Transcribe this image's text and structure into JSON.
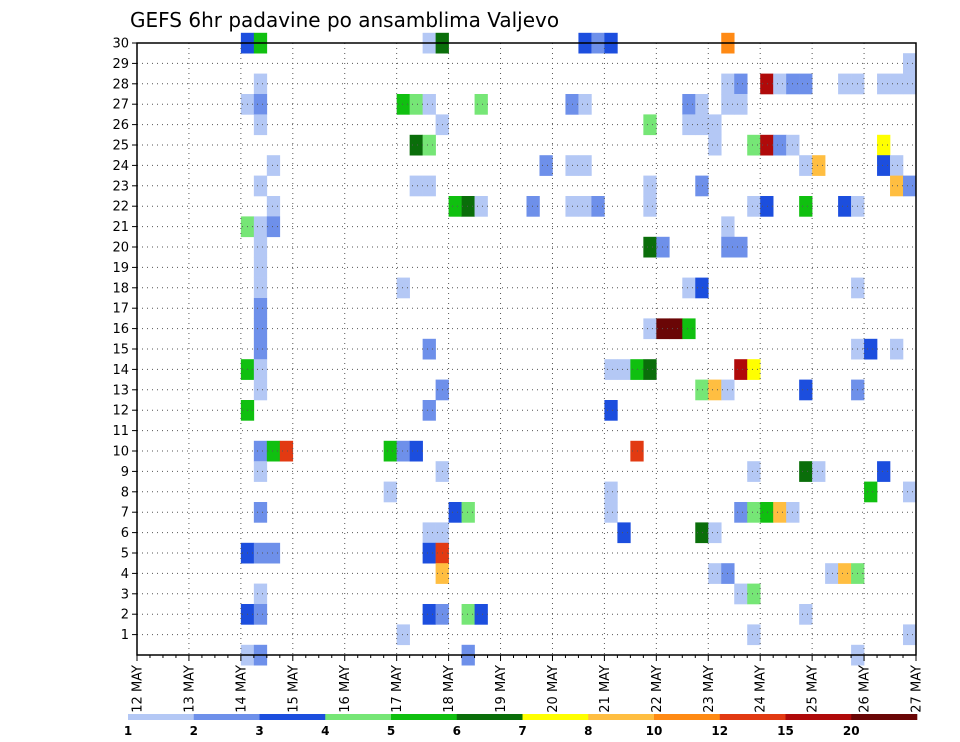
{
  "chart_data": {
    "type": "heatmap",
    "title": "GEFS 6hr padavine po ansamblima Valjevo",
    "x_tick_labels": [
      "12 MAY",
      "13 MAY",
      "14 MAY",
      "15 MAY",
      "16 MAY",
      "17 MAY",
      "18 MAY",
      "19 MAY",
      "20 MAY",
      "21 MAY",
      "22 MAY",
      "23 MAY",
      "24 MAY",
      "25 MAY",
      "26 MAY",
      "27 MAY"
    ],
    "y_tick_labels": [
      "1",
      "2",
      "3",
      "4",
      "5",
      "6",
      "7",
      "8",
      "9",
      "10",
      "11",
      "12",
      "13",
      "14",
      "15",
      "16",
      "17",
      "18",
      "19",
      "20",
      "21",
      "22",
      "23",
      "24",
      "25",
      "26",
      "27",
      "28",
      "29",
      "30"
    ],
    "xlim": [
      0,
      60
    ],
    "ylim": [
      0,
      30
    ],
    "x_units": "6-hour steps from 12 MAY 00Z",
    "y_units": "ensemble member",
    "grid": true,
    "colorbar": {
      "labels": [
        "1",
        "2",
        "3",
        "4",
        "5",
        "6",
        "7",
        "8",
        "10",
        "12",
        "15",
        "20"
      ],
      "colors": [
        "#b4c8f5",
        "#6e90ea",
        "#1c4ede",
        "#76e676",
        "#10c010",
        "#0a6e0a",
        "#ffff00",
        "#ffbe41",
        "#ff8a14",
        "#e23a12",
        "#b00a0a",
        "#6a0606"
      ]
    },
    "cells": [
      [
        8,
        30,
        2
      ],
      [
        9,
        30,
        4
      ],
      [
        22,
        30,
        0
      ],
      [
        23,
        30,
        5
      ],
      [
        34,
        30,
        2
      ],
      [
        35,
        30,
        1
      ],
      [
        36,
        30,
        2
      ],
      [
        45,
        30,
        8
      ],
      [
        59,
        29,
        0
      ],
      [
        9,
        28,
        0
      ],
      [
        45,
        28,
        0
      ],
      [
        46,
        28,
        1
      ],
      [
        48,
        28,
        10
      ],
      [
        49,
        28,
        0
      ],
      [
        50,
        28,
        1
      ],
      [
        51,
        28,
        1
      ],
      [
        54,
        28,
        0
      ],
      [
        55,
        28,
        0
      ],
      [
        57,
        28,
        0
      ],
      [
        58,
        28,
        0
      ],
      [
        59,
        28,
        0
      ],
      [
        8,
        27,
        0
      ],
      [
        9,
        27,
        1
      ],
      [
        20,
        27,
        4
      ],
      [
        21,
        27,
        3
      ],
      [
        22,
        27,
        0
      ],
      [
        26,
        27,
        3
      ],
      [
        33,
        27,
        1
      ],
      [
        34,
        27,
        0
      ],
      [
        42,
        27,
        1
      ],
      [
        43,
        27,
        0
      ],
      [
        45,
        27,
        0
      ],
      [
        46,
        27,
        0
      ],
      [
        9,
        26,
        0
      ],
      [
        23,
        26,
        0
      ],
      [
        39,
        26,
        3
      ],
      [
        42,
        26,
        0
      ],
      [
        43,
        26,
        0
      ],
      [
        44,
        26,
        0
      ],
      [
        21,
        25,
        5
      ],
      [
        22,
        25,
        3
      ],
      [
        44,
        25,
        0
      ],
      [
        47,
        25,
        3
      ],
      [
        48,
        25,
        10
      ],
      [
        49,
        25,
        1
      ],
      [
        50,
        25,
        0
      ],
      [
        57,
        25,
        6
      ],
      [
        10,
        24,
        0
      ],
      [
        31,
        24,
        1
      ],
      [
        33,
        24,
        0
      ],
      [
        34,
        24,
        0
      ],
      [
        51,
        24,
        0
      ],
      [
        52,
        24,
        7
      ],
      [
        57,
        24,
        2
      ],
      [
        58,
        24,
        0
      ],
      [
        9,
        23,
        0
      ],
      [
        21,
        23,
        0
      ],
      [
        22,
        23,
        0
      ],
      [
        39,
        23,
        0
      ],
      [
        43,
        23,
        1
      ],
      [
        58,
        23,
        7
      ],
      [
        59,
        23,
        1
      ],
      [
        10,
        22,
        0
      ],
      [
        24,
        22,
        4
      ],
      [
        25,
        22,
        5
      ],
      [
        26,
        22,
        0
      ],
      [
        30,
        22,
        1
      ],
      [
        33,
        22,
        0
      ],
      [
        34,
        22,
        0
      ],
      [
        35,
        22,
        1
      ],
      [
        39,
        22,
        0
      ],
      [
        47,
        22,
        0
      ],
      [
        48,
        22,
        2
      ],
      [
        51,
        22,
        4
      ],
      [
        54,
        22,
        2
      ],
      [
        55,
        22,
        0
      ],
      [
        8,
        21,
        3
      ],
      [
        9,
        21,
        0
      ],
      [
        10,
        21,
        1
      ],
      [
        45,
        21,
        0
      ],
      [
        9,
        20,
        0
      ],
      [
        39,
        20,
        5
      ],
      [
        40,
        20,
        1
      ],
      [
        45,
        20,
        1
      ],
      [
        46,
        20,
        1
      ],
      [
        9,
        19,
        0
      ],
      [
        9,
        18,
        0
      ],
      [
        20,
        18,
        0
      ],
      [
        42,
        18,
        0
      ],
      [
        43,
        18,
        2
      ],
      [
        55,
        18,
        0
      ],
      [
        9,
        17,
        1
      ],
      [
        9,
        16,
        1
      ],
      [
        39,
        16,
        0
      ],
      [
        40,
        16,
        11
      ],
      [
        41,
        16,
        11
      ],
      [
        42,
        16,
        4
      ],
      [
        9,
        15,
        1
      ],
      [
        22,
        15,
        1
      ],
      [
        55,
        15,
        0
      ],
      [
        56,
        15,
        2
      ],
      [
        58,
        15,
        0
      ],
      [
        8,
        14,
        4
      ],
      [
        9,
        14,
        0
      ],
      [
        36,
        14,
        0
      ],
      [
        37,
        14,
        0
      ],
      [
        38,
        14,
        4
      ],
      [
        39,
        14,
        5
      ],
      [
        46,
        14,
        10
      ],
      [
        47,
        14,
        6
      ],
      [
        9,
        13,
        0
      ],
      [
        23,
        13,
        1
      ],
      [
        43,
        13,
        3
      ],
      [
        44,
        13,
        7
      ],
      [
        45,
        13,
        0
      ],
      [
        51,
        13,
        2
      ],
      [
        55,
        13,
        1
      ],
      [
        8,
        12,
        4
      ],
      [
        22,
        12,
        1
      ],
      [
        36,
        12,
        2
      ],
      [
        9,
        10,
        1
      ],
      [
        10,
        10,
        4
      ],
      [
        11,
        10,
        9
      ],
      [
        19,
        10,
        4
      ],
      [
        20,
        10,
        1
      ],
      [
        21,
        10,
        2
      ],
      [
        38,
        10,
        9
      ],
      [
        9,
        9,
        0
      ],
      [
        23,
        9,
        0
      ],
      [
        47,
        9,
        0
      ],
      [
        51,
        9,
        5
      ],
      [
        52,
        9,
        0
      ],
      [
        57,
        9,
        2
      ],
      [
        19,
        8,
        0
      ],
      [
        36,
        8,
        0
      ],
      [
        56,
        8,
        4
      ],
      [
        59,
        8,
        0
      ],
      [
        9,
        7,
        1
      ],
      [
        24,
        7,
        2
      ],
      [
        25,
        7,
        3
      ],
      [
        36,
        7,
        0
      ],
      [
        46,
        7,
        1
      ],
      [
        47,
        7,
        3
      ],
      [
        48,
        7,
        4
      ],
      [
        49,
        7,
        7
      ],
      [
        50,
        7,
        0
      ],
      [
        22,
        6,
        0
      ],
      [
        23,
        6,
        0
      ],
      [
        37,
        6,
        2
      ],
      [
        43,
        6,
        5
      ],
      [
        44,
        6,
        0
      ],
      [
        8,
        5,
        2
      ],
      [
        9,
        5,
        1
      ],
      [
        10,
        5,
        1
      ],
      [
        22,
        5,
        2
      ],
      [
        23,
        5,
        9
      ],
      [
        23,
        4,
        7
      ],
      [
        44,
        4,
        0
      ],
      [
        45,
        4,
        1
      ],
      [
        53,
        4,
        0
      ],
      [
        54,
        4,
        7
      ],
      [
        55,
        4,
        3
      ],
      [
        9,
        3,
        0
      ],
      [
        46,
        3,
        0
      ],
      [
        47,
        3,
        3
      ],
      [
        8,
        2,
        2
      ],
      [
        9,
        2,
        1
      ],
      [
        22,
        2,
        2
      ],
      [
        23,
        2,
        1
      ],
      [
        25,
        2,
        3
      ],
      [
        26,
        2,
        2
      ],
      [
        51,
        2,
        0
      ],
      [
        20,
        1,
        0
      ],
      [
        47,
        1,
        0
      ],
      [
        59,
        1,
        0
      ],
      [
        8,
        0,
        0
      ],
      [
        9,
        0,
        1
      ],
      [
        25,
        0,
        1
      ],
      [
        55,
        0,
        0
      ]
    ]
  }
}
